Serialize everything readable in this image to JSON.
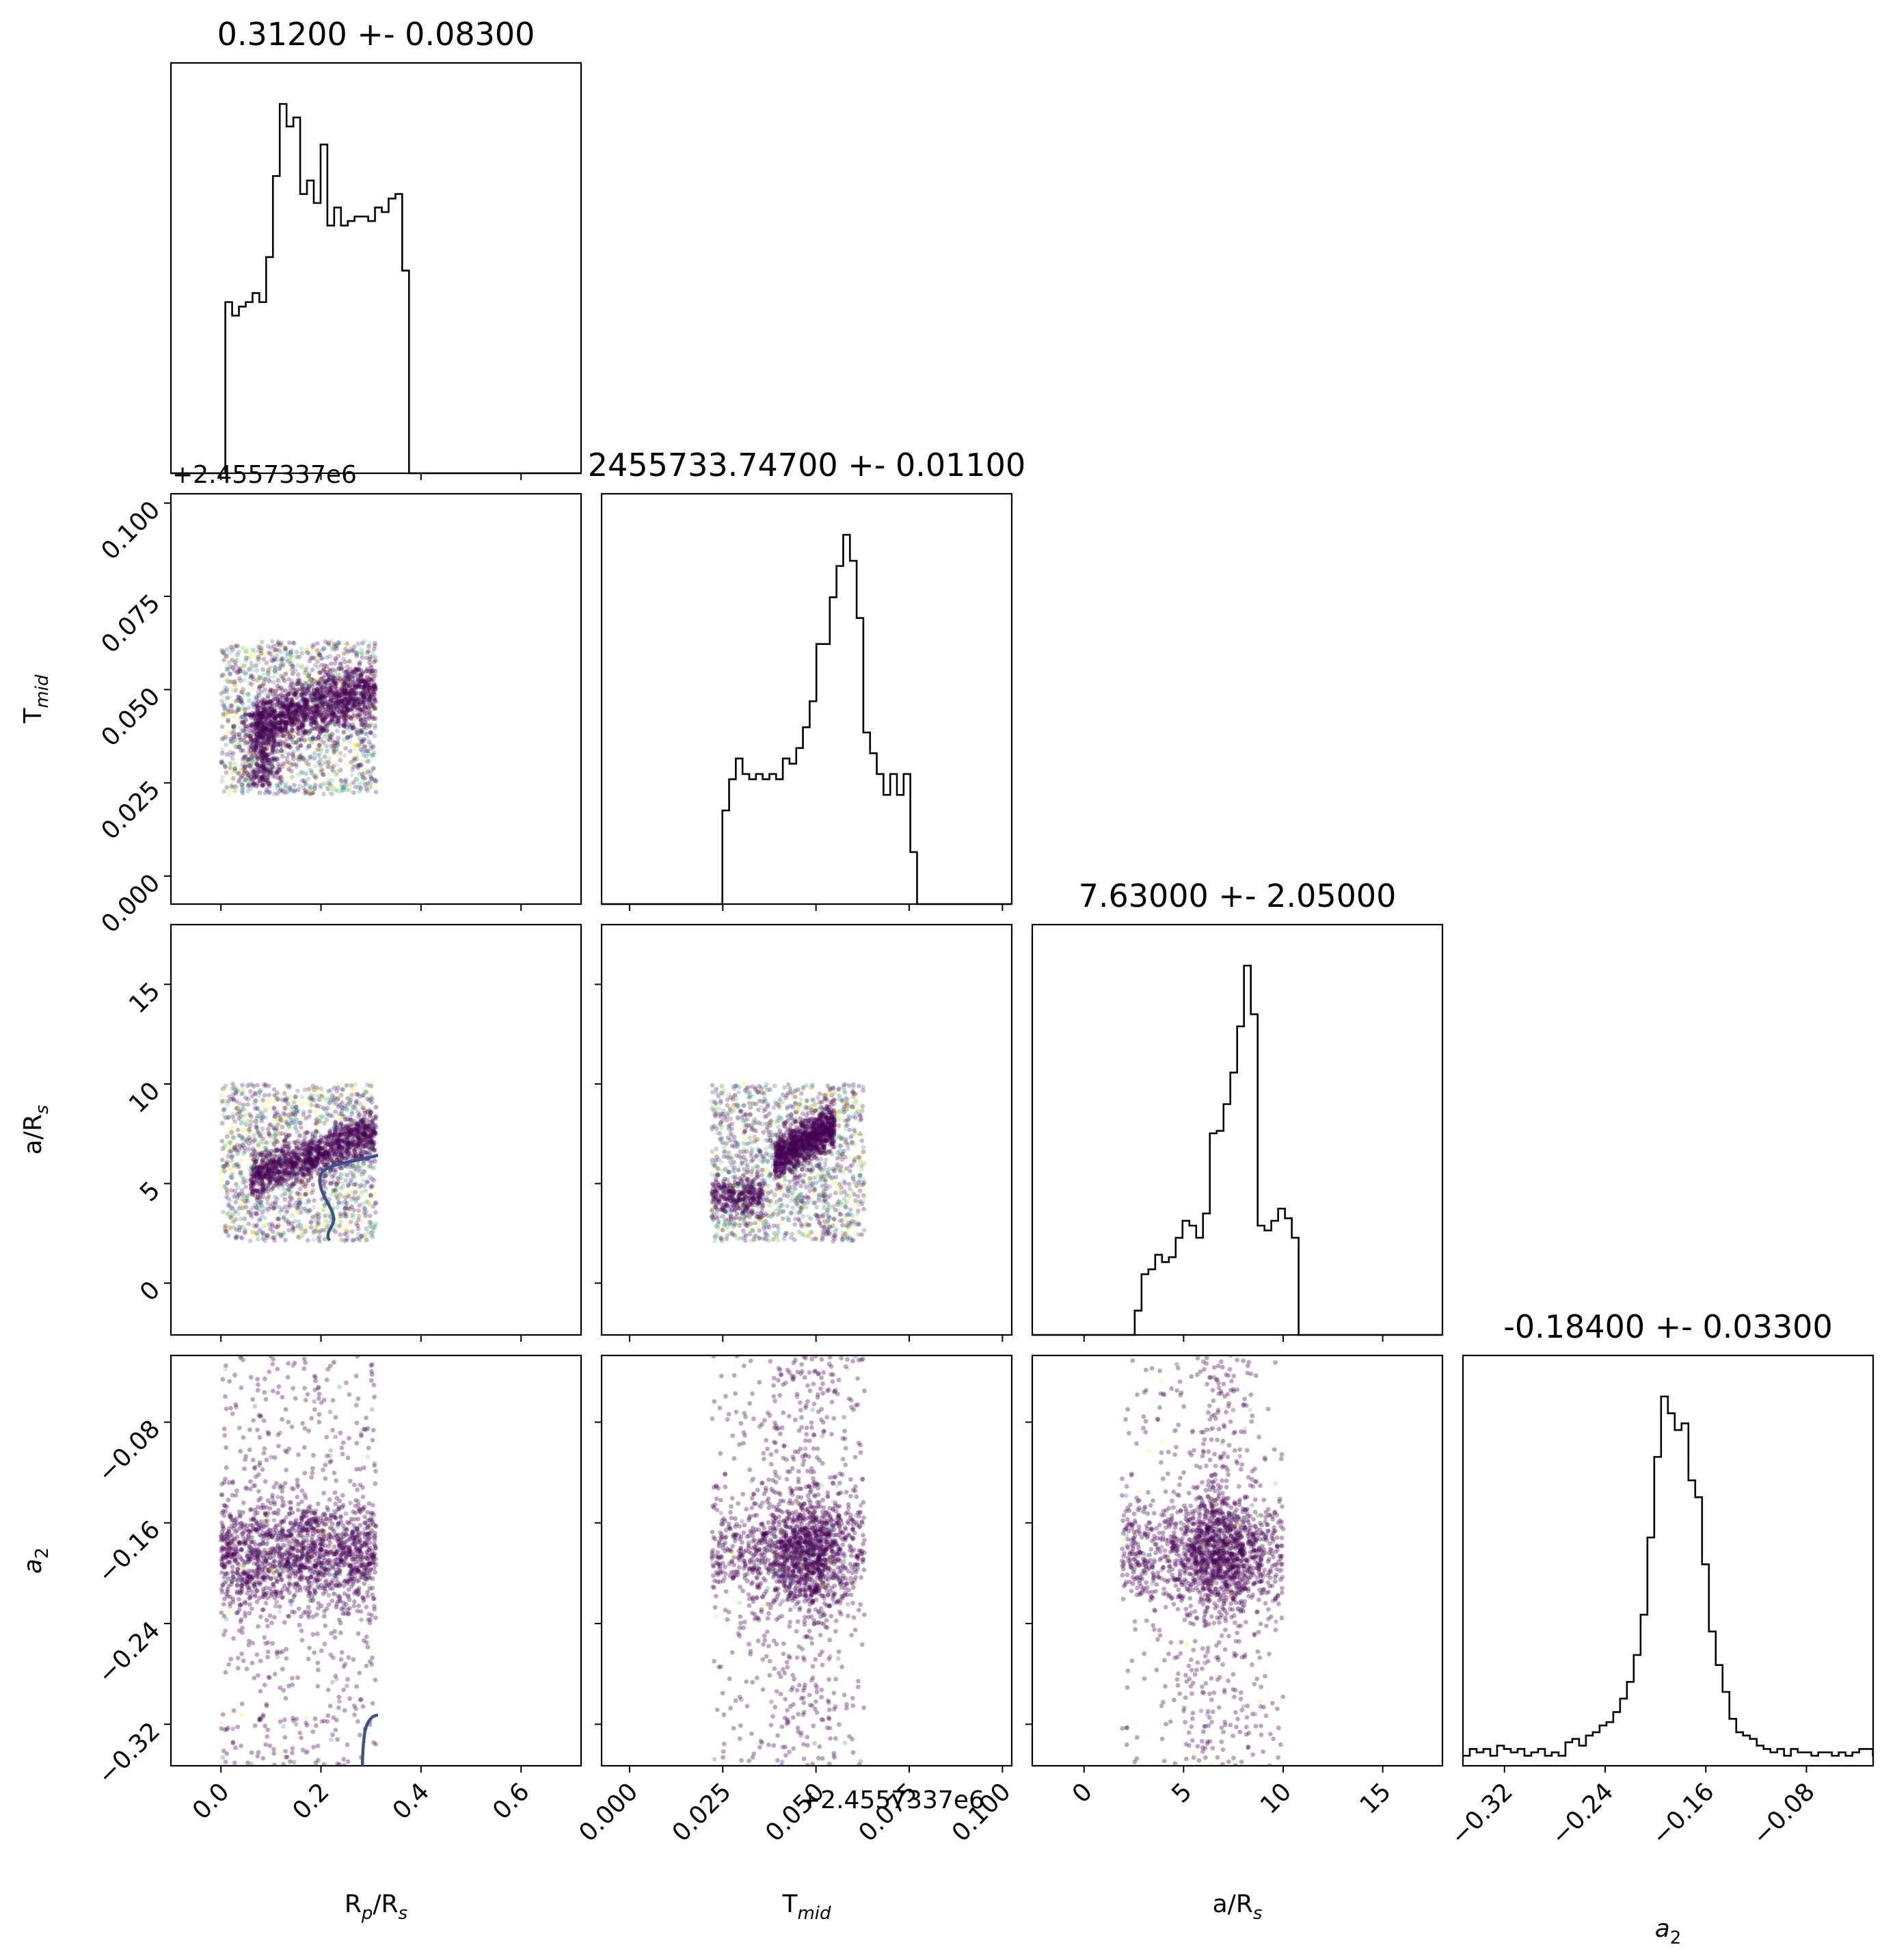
{
  "chart_data": {
    "type": "scatter",
    "subtype": "corner plot",
    "parameters": [
      "R_p/R_s",
      "T_mid",
      "a/R_s",
      "a_2"
    ],
    "titles": [
      "0.31200 +- 0.08300",
      "2455733.74700 +- 0.01100",
      "7.63000 +- 2.05000",
      "-0.18400 +- 0.03300"
    ],
    "x_labels": [
      {
        "main": "R",
        "sub": "p",
        "mid": "/R",
        "sub2": "s"
      },
      {
        "main": "T",
        "sub": "mid",
        "mid": "",
        "sub2": ""
      },
      {
        "main": "a/R",
        "sub": "s",
        "mid": "",
        "sub2": ""
      },
      {
        "main": "a",
        "sub": "2",
        "mid": "",
        "sub2": ""
      }
    ],
    "y_labels": [
      {
        "main": "T",
        "sub": "mid"
      },
      {
        "main": "a/R",
        "sub": "s"
      },
      {
        "main": "a",
        "sub": "2"
      }
    ],
    "offset_text_top": "+2.4557337e6",
    "offset_text_bottom": "+2.4557337e6",
    "ranges": {
      "R_p/R_s": [
        -0.1,
        0.72
      ],
      "T_mid": [
        -0.0075,
        0.1025
      ],
      "a/R_s": [
        -2.6,
        18.0
      ],
      "a_2": [
        -0.353,
        -0.027
      ]
    },
    "ticks": {
      "R_p/R_s": {
        "values": [
          0.0,
          0.2,
          0.4,
          0.6
        ],
        "labels": [
          "0.0",
          "0.2",
          "0.4",
          "0.6"
        ]
      },
      "T_mid": {
        "values": [
          0.0,
          0.025,
          0.05,
          0.075,
          0.1
        ],
        "labels": [
          "0.000",
          "0.025",
          "0.050",
          "0.075",
          "0.100"
        ]
      },
      "a/R_s": {
        "values": [
          0,
          5,
          10,
          15
        ],
        "labels": [
          "0",
          "5",
          "10",
          "15"
        ]
      },
      "a_2": {
        "values": [
          -0.32,
          -0.24,
          -0.16,
          -0.08
        ],
        "labels": [
          "−0.32",
          "−0.24",
          "−0.16",
          "−0.08"
        ]
      }
    },
    "histograms": {
      "R_p/R_s": {
        "bin_start": -0.1,
        "bin_width": 0.0136,
        "counts": [
          0,
          0,
          0,
          0,
          0,
          0,
          0,
          0,
          38,
          35,
          37,
          38,
          40,
          38,
          48,
          66,
          82,
          77,
          79,
          62,
          65,
          60,
          73,
          55,
          59,
          55,
          56,
          57,
          57,
          56,
          59,
          58,
          61,
          62,
          45,
          0,
          0,
          0,
          0,
          0,
          0,
          0,
          0,
          0,
          0,
          0,
          0,
          0,
          0,
          0,
          0,
          0,
          0,
          0,
          0,
          0,
          0,
          0,
          0,
          0,
          0
        ]
      },
      "T_mid": {
        "bin_start": -0.0075,
        "bin_width": 0.0018,
        "counts": [
          0,
          0,
          0,
          0,
          0,
          0,
          0,
          0,
          0,
          0,
          0,
          0,
          0,
          0,
          0,
          0,
          0,
          0,
          18,
          24,
          28,
          25,
          24,
          25,
          24,
          25,
          24,
          28,
          27,
          30,
          34,
          39,
          50,
          50,
          59,
          65,
          71,
          66,
          55,
          33,
          29,
          25,
          21,
          25,
          21,
          25,
          10,
          0,
          0,
          0,
          0,
          0,
          0,
          0,
          0,
          0,
          0,
          0,
          0,
          0,
          0
        ]
      },
      "a/R_s": {
        "bin_start": -2.6,
        "bin_width": 0.343,
        "counts": [
          0,
          0,
          0,
          0,
          0,
          0,
          0,
          0,
          0,
          0,
          0,
          0,
          0,
          0,
          0,
          10,
          25,
          27,
          33,
          30,
          32,
          40,
          47,
          45,
          40,
          50,
          83,
          84,
          95,
          108,
          127,
          152,
          132,
          45,
          43,
          47,
          52,
          48,
          40,
          0,
          0,
          0,
          0,
          0,
          0,
          0,
          0,
          0,
          0,
          0,
          0,
          0,
          0,
          0,
          0,
          0,
          0,
          0,
          0,
          0,
          0
        ]
      },
      "a_2": {
        "bin_start": -0.353,
        "bin_width": 0.00543,
        "counts": [
          3,
          5,
          4,
          5,
          3,
          6,
          5,
          4,
          5,
          3,
          4,
          5,
          3,
          4,
          3,
          7,
          8,
          6,
          9,
          10,
          12,
          13,
          16,
          20,
          25,
          33,
          45,
          68,
          92,
          110,
          105,
          100,
          102,
          85,
          80,
          60,
          40,
          30,
          22,
          14,
          10,
          9,
          8,
          6,
          5,
          4,
          5,
          3,
          5,
          4,
          4,
          3,
          4,
          4,
          3,
          4,
          3,
          4,
          5,
          5,
          3,
          4
        ]
      }
    },
    "scatter_description": [
      {
        "x": "R_p/R_s",
        "y": "T_mid",
        "x_span": [
          0.0,
          0.31
        ],
        "y_span": [
          0.022,
          0.063
        ]
      },
      {
        "x": "R_p/R_s",
        "y": "a/R_s",
        "x_span": [
          0.0,
          0.31
        ],
        "y_span": [
          2.1,
          10.0
        ]
      },
      {
        "x": "T_mid",
        "y": "a/R_s",
        "x_span": [
          0.022,
          0.063
        ],
        "y_span": [
          2.1,
          10.0
        ]
      },
      {
        "x": "R_p/R_s",
        "y": "a_2",
        "x_span": [
          0.0,
          0.31
        ],
        "y_span": [
          -0.353,
          -0.027
        ]
      },
      {
        "x": "T_mid",
        "y": "a_2",
        "x_span": [
          0.022,
          0.063
        ],
        "y_span": [
          -0.353,
          -0.027
        ]
      },
      {
        "x": "a/R_s",
        "y": "a_2",
        "x_span": [
          1.9,
          10.0
        ],
        "y_span": [
          -0.353,
          -0.027
        ]
      }
    ],
    "point_color": "#440154",
    "contour_color": "#3b5288",
    "grid": false,
    "legend": "none"
  }
}
